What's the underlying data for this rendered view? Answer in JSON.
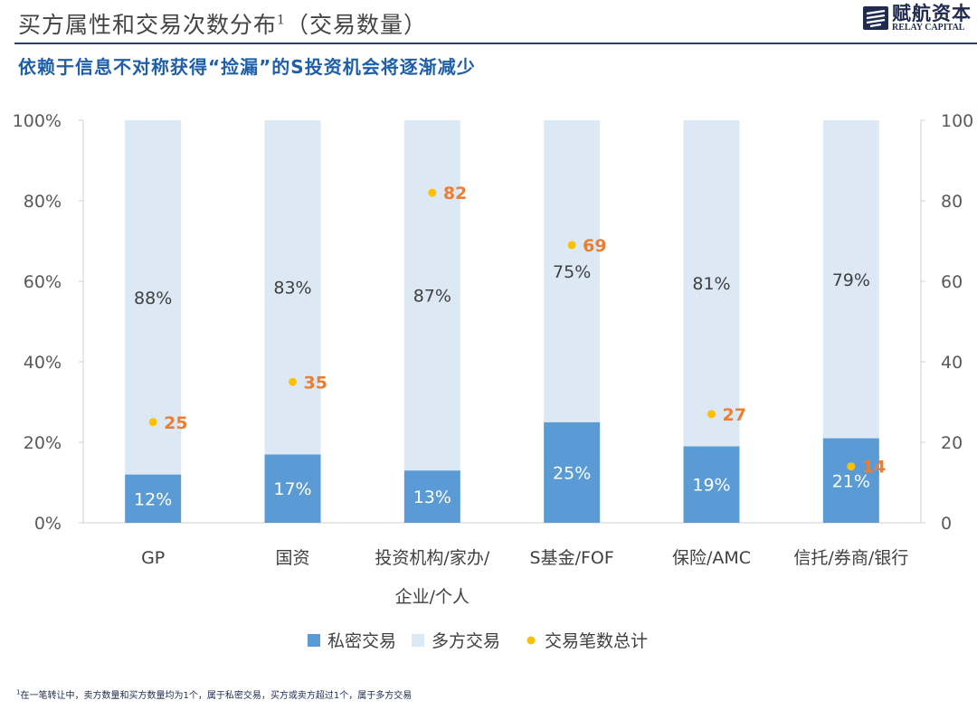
{
  "header": {
    "title": "买方属性和交易次数分布",
    "title_sup": "1",
    "title_suffix": "（交易数量）",
    "subtitle": "依赖于信息不对称获得“捡漏”的S投资机会将逐渐减少",
    "logo_cn": "赋航资本",
    "logo_en": "RELAY CAPITAL",
    "rule_color": "#2a3f7a"
  },
  "footnote": {
    "sup": "1",
    "text": "在一笔转让中，卖方数量和买方数量均为1个，属于私密交易，买方或卖方超过1个，属于多方交易"
  },
  "chart_data": {
    "type": "bar",
    "stacked": true,
    "categories": [
      "GP",
      "国资",
      "投资机构/家办/企业/个人",
      "S基金/FOF",
      "保险/AMC",
      "信托/券商/银行"
    ],
    "category_lines": [
      [
        "GP"
      ],
      [
        "国资"
      ],
      [
        "投资机构/家办/",
        "企业/个人"
      ],
      [
        "S基金/FOF"
      ],
      [
        "保险/AMC"
      ],
      [
        "信托/券商/银行"
      ]
    ],
    "series": [
      {
        "name": "私密交易",
        "type": "bar",
        "axis": "left",
        "color": "#5b9bd5",
        "values": [
          12,
          17,
          13,
          25,
          19,
          21
        ],
        "labels": [
          "12%",
          "17%",
          "13%",
          "25%",
          "19%",
          "21%"
        ]
      },
      {
        "name": "多方交易",
        "type": "bar",
        "axis": "left",
        "color": "#dde8f5",
        "values": [
          88,
          83,
          87,
          75,
          81,
          79
        ],
        "labels": [
          "88%",
          "83%",
          "87%",
          "75%",
          "81%",
          "79%"
        ]
      },
      {
        "name": "交易笔数总计",
        "type": "scatter",
        "axis": "right",
        "color": "#ffc000",
        "label_color": "#ed7d31",
        "values": [
          25,
          35,
          82,
          69,
          27,
          14
        ],
        "labels": [
          "25",
          "35",
          "82",
          "69",
          "27",
          "14"
        ]
      }
    ],
    "y_left": {
      "min": 0,
      "max": 100,
      "ticks": [
        "0%",
        "20%",
        "40%",
        "60%",
        "80%",
        "100%"
      ]
    },
    "y_right": {
      "min": 0,
      "max": 100,
      "ticks": [
        "0",
        "20",
        "40",
        "60",
        "80",
        "100"
      ]
    },
    "legend_position": "bottom",
    "grid": false
  }
}
